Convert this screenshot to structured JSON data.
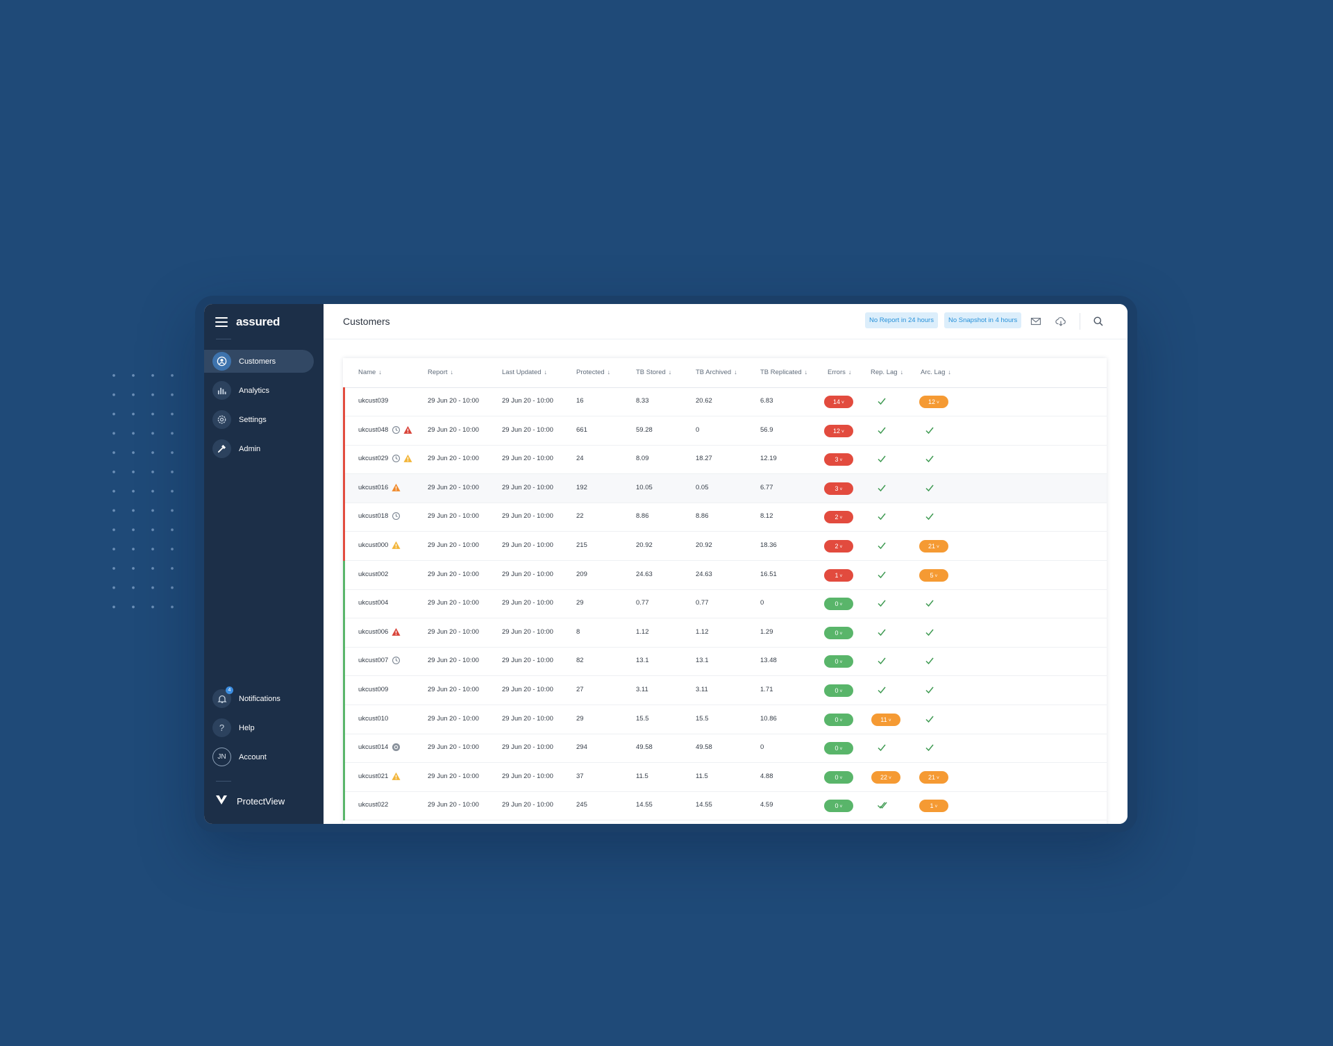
{
  "app": {
    "brand": "assured",
    "product": "ProtectView"
  },
  "sidebar": {
    "items": [
      {
        "label": "Customers",
        "icon": "user-circle-icon",
        "active": true
      },
      {
        "label": "Analytics",
        "icon": "bar-chart-icon"
      },
      {
        "label": "Settings",
        "icon": "gear-icon"
      },
      {
        "label": "Admin",
        "icon": "hammer-icon"
      }
    ],
    "bottom": [
      {
        "label": "Notifications",
        "icon": "bell-icon",
        "badge": "4"
      },
      {
        "label": "Help",
        "icon": "question-icon",
        "glyph": "?"
      },
      {
        "label": "Account",
        "icon": "avatar",
        "glyph": "JN"
      }
    ]
  },
  "header": {
    "title": "Customers",
    "filters": [
      "No Report in 24 hours",
      "No Snapshot in 4 hours"
    ]
  },
  "table": {
    "columns": [
      "Name",
      "Report",
      "Last Updated",
      "Protected",
      "TB Stored",
      "TB Archived",
      "TB Replicated",
      "Errors",
      "Rep. Lag",
      "Arc. Lag"
    ],
    "rows": [
      {
        "name": "ukcust039",
        "status": "red",
        "icons": [],
        "report": "29 Jun 20 - 10:00",
        "updated": "29 Jun 20 - 10:00",
        "protected": "16",
        "stored": "8.33",
        "archived": "20.62",
        "replicated": "6.83",
        "errors": {
          "value": "14",
          "color": "red"
        },
        "rep_lag": "ok",
        "arc_lag": {
          "value": "12",
          "color": "orange"
        }
      },
      {
        "name": "ukcust048",
        "status": "red",
        "icons": [
          "clock-icon",
          "warning-red-icon"
        ],
        "report": "29 Jun 20 - 10:00",
        "updated": "29 Jun 20 - 10:00",
        "protected": "661",
        "stored": "59.28",
        "archived": "0",
        "replicated": "56.9",
        "errors": {
          "value": "12",
          "color": "red"
        },
        "rep_lag": "ok",
        "arc_lag": "ok"
      },
      {
        "name": "ukcust029",
        "status": "red",
        "icons": [
          "clock-icon",
          "warning-yellow-icon"
        ],
        "report": "29 Jun 20 - 10:00",
        "updated": "29 Jun 20 - 10:00",
        "protected": "24",
        "stored": "8.09",
        "archived": "18.27",
        "replicated": "12.19",
        "errors": {
          "value": "3",
          "color": "red"
        },
        "rep_lag": "ok",
        "arc_lag": "ok"
      },
      {
        "name": "ukcust016",
        "status": "red",
        "icons": [
          "warning-orange-icon"
        ],
        "report": "29 Jun 20 - 10:00",
        "updated": "29 Jun 20 - 10:00",
        "protected": "192",
        "stored": "10.05",
        "archived": "0.05",
        "replicated": "6.77",
        "errors": {
          "value": "3",
          "color": "red"
        },
        "rep_lag": "ok",
        "arc_lag": "ok",
        "highlight": true
      },
      {
        "name": "ukcust018",
        "status": "red",
        "icons": [
          "clock-icon"
        ],
        "report": "29 Jun 20 - 10:00",
        "updated": "29 Jun 20 - 10:00",
        "protected": "22",
        "stored": "8.86",
        "archived": "8.86",
        "replicated": "8.12",
        "errors": {
          "value": "2",
          "color": "red"
        },
        "rep_lag": "ok",
        "arc_lag": "ok"
      },
      {
        "name": "ukcust000",
        "status": "red",
        "icons": [
          "warning-yellow-icon"
        ],
        "report": "29 Jun 20 - 10:00",
        "updated": "29 Jun 20 - 10:00",
        "protected": "215",
        "stored": "20.92",
        "archived": "20.92",
        "replicated": "18.36",
        "errors": {
          "value": "2",
          "color": "red"
        },
        "rep_lag": "ok",
        "arc_lag": {
          "value": "21",
          "color": "orange"
        }
      },
      {
        "name": "ukcust002",
        "status": "green",
        "icons": [],
        "report": "29 Jun 20 - 10:00",
        "updated": "29 Jun 20 - 10:00",
        "protected": "209",
        "stored": "24.63",
        "archived": "24.63",
        "replicated": "16.51",
        "errors": {
          "value": "1",
          "color": "red"
        },
        "rep_lag": "ok",
        "arc_lag": {
          "value": "5",
          "color": "orange"
        }
      },
      {
        "name": "ukcust004",
        "status": "green",
        "icons": [],
        "report": "29 Jun 20 - 10:00",
        "updated": "29 Jun 20 - 10:00",
        "protected": "29",
        "stored": "0.77",
        "archived": "0.77",
        "replicated": "0",
        "errors": {
          "value": "0",
          "color": "green"
        },
        "rep_lag": "ok",
        "arc_lag": "ok"
      },
      {
        "name": "ukcust006",
        "status": "green",
        "icons": [
          "warning-red-icon"
        ],
        "report": "29 Jun 20 - 10:00",
        "updated": "29 Jun 20 - 10:00",
        "protected": "8",
        "stored": "1.12",
        "archived": "1.12",
        "replicated": "1.29",
        "errors": {
          "value": "0",
          "color": "green"
        },
        "rep_lag": "ok",
        "arc_lag": "ok"
      },
      {
        "name": "ukcust007",
        "status": "green",
        "icons": [
          "clock-icon"
        ],
        "report": "29 Jun 20 - 10:00",
        "updated": "29 Jun 20 - 10:00",
        "protected": "82",
        "stored": "13.1",
        "archived": "13.1",
        "replicated": "13.48",
        "errors": {
          "value": "0",
          "color": "green"
        },
        "rep_lag": "ok",
        "arc_lag": "ok"
      },
      {
        "name": "ukcust009",
        "status": "green",
        "icons": [],
        "report": "29 Jun 20 - 10:00",
        "updated": "29 Jun 20 - 10:00",
        "protected": "27",
        "stored": "3.11",
        "archived": "3.11",
        "replicated": "1.71",
        "errors": {
          "value": "0",
          "color": "green"
        },
        "rep_lag": "ok",
        "arc_lag": "ok"
      },
      {
        "name": "ukcust010",
        "status": "green",
        "icons": [],
        "report": "29 Jun 20 - 10:00",
        "updated": "29 Jun 20 - 10:00",
        "protected": "29",
        "stored": "15.5",
        "archived": "15.5",
        "replicated": "10.86",
        "errors": {
          "value": "0",
          "color": "green"
        },
        "rep_lag": {
          "value": "11",
          "color": "orange"
        },
        "arc_lag": "ok"
      },
      {
        "name": "ukcust014",
        "status": "green",
        "icons": [
          "snapshot-icon"
        ],
        "report": "29 Jun 20 - 10:00",
        "updated": "29 Jun 20 - 10:00",
        "protected": "294",
        "stored": "49.58",
        "archived": "49.58",
        "replicated": "0",
        "errors": {
          "value": "0",
          "color": "green"
        },
        "rep_lag": "ok",
        "arc_lag": "ok"
      },
      {
        "name": "ukcust021",
        "status": "green",
        "icons": [
          "warning-yellow-icon"
        ],
        "report": "29 Jun 20 - 10:00",
        "updated": "29 Jun 20 - 10:00",
        "protected": "37",
        "stored": "11.5",
        "archived": "11.5",
        "replicated": "4.88",
        "errors": {
          "value": "0",
          "color": "green"
        },
        "rep_lag": {
          "value": "22",
          "color": "orange"
        },
        "arc_lag": {
          "value": "21",
          "color": "orange"
        }
      },
      {
        "name": "ukcust022",
        "status": "green",
        "icons": [],
        "report": "29 Jun 20 - 10:00",
        "updated": "29 Jun 20 - 10:00",
        "protected": "245",
        "stored": "14.55",
        "archived": "14.55",
        "replicated": "4.59",
        "errors": {
          "value": "0",
          "color": "green"
        },
        "rep_lag": "double-ok",
        "arc_lag": {
          "value": "1",
          "color": "orange"
        }
      }
    ]
  },
  "colors": {
    "red": "#e24b3e",
    "green": "#59b56a",
    "orange": "#f59a33",
    "accent": "#3e73ad"
  }
}
